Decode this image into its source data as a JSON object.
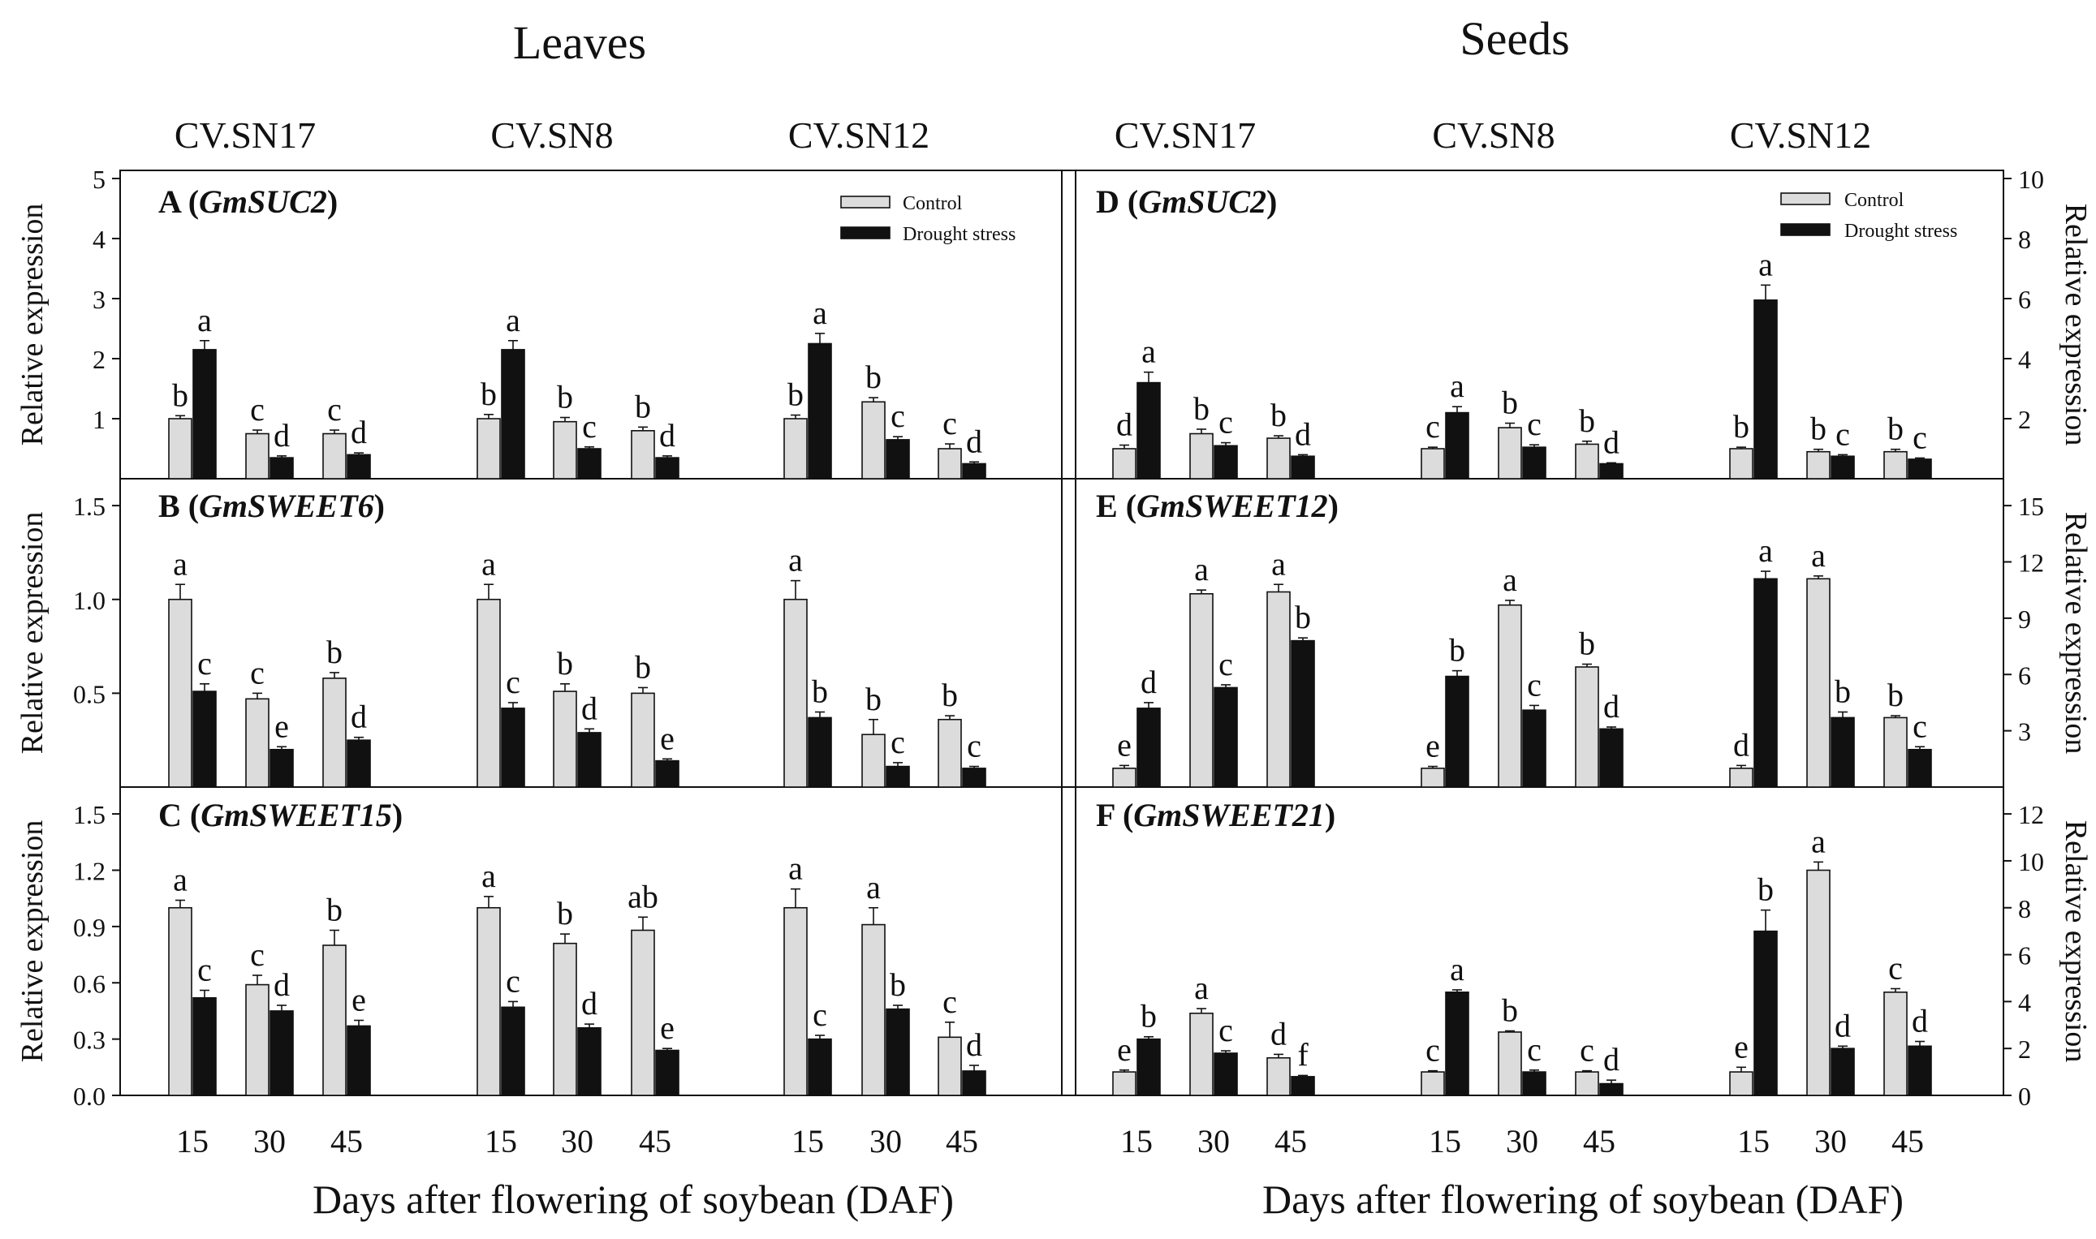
{
  "headers": {
    "leaves": "Leaves",
    "seeds": "Seeds",
    "cultivars": [
      "CV.SN17",
      "CV.SN8",
      "CV.SN12"
    ]
  },
  "xlabel": "Days after flowering of soybean (DAF)",
  "days": [
    "15",
    "30",
    "45"
  ],
  "legend": {
    "control": "Control",
    "drought": "Drought stress"
  },
  "colors": {
    "control": "#dcdcdc",
    "drought": "#111111"
  },
  "chart_data": [
    {
      "type": "bar",
      "panel": "A",
      "gene": "GmSUC2",
      "tissue": "Leaves",
      "ylabel": "Relative expression",
      "ylim": [
        0,
        5
      ],
      "yticks": [
        1,
        2,
        3,
        4,
        5
      ],
      "categories": [
        "CV.SN17 15",
        "CV.SN17 30",
        "CV.SN17 45",
        "CV.SN8 15",
        "CV.SN8 30",
        "CV.SN8 45",
        "CV.SN12 15",
        "CV.SN12 30",
        "CV.SN12 45"
      ],
      "series": [
        {
          "name": "Control",
          "values": [
            1.0,
            0.75,
            0.75,
            1.0,
            0.95,
            0.8,
            1.0,
            1.28,
            0.5
          ],
          "errors": [
            0.05,
            0.06,
            0.06,
            0.07,
            0.07,
            0.06,
            0.06,
            0.07,
            0.08
          ],
          "labels": [
            "b",
            "c",
            "c",
            "b",
            "b",
            "b",
            "b",
            "b",
            "c"
          ]
        },
        {
          "name": "Drought stress",
          "values": [
            2.15,
            0.35,
            0.4,
            2.15,
            0.5,
            0.35,
            2.25,
            0.65,
            0.25
          ],
          "errors": [
            0.15,
            0.03,
            0.03,
            0.15,
            0.03,
            0.03,
            0.17,
            0.05,
            0.03
          ],
          "labels": [
            "a",
            "d",
            "d",
            "a",
            "c",
            "d",
            "a",
            "c",
            "d"
          ]
        }
      ]
    },
    {
      "type": "bar",
      "panel": "B",
      "gene": "GmSWEET6",
      "tissue": "Leaves",
      "ylabel": "Relative expression",
      "ylim": [
        0,
        1.6
      ],
      "yticks": [
        "0.5",
        "1.0",
        "1.5"
      ],
      "categories": [
        "CV.SN17 15",
        "CV.SN17 30",
        "CV.SN17 45",
        "CV.SN8 15",
        "CV.SN8 30",
        "CV.SN8 45",
        "CV.SN12 15",
        "CV.SN12 30",
        "CV.SN12 45"
      ],
      "series": [
        {
          "name": "Control",
          "values": [
            1.0,
            0.47,
            0.58,
            1.0,
            0.51,
            0.5,
            1.0,
            0.28,
            0.36
          ],
          "errors": [
            0.08,
            0.03,
            0.03,
            0.08,
            0.04,
            0.03,
            0.1,
            0.08,
            0.02
          ],
          "labels": [
            "a",
            "c",
            "b",
            "a",
            "b",
            "b",
            "a",
            "b",
            "b"
          ]
        },
        {
          "name": "Drought stress",
          "values": [
            0.51,
            0.2,
            0.25,
            0.42,
            0.29,
            0.14,
            0.37,
            0.11,
            0.1
          ],
          "errors": [
            0.04,
            0.015,
            0.015,
            0.03,
            0.02,
            0.01,
            0.03,
            0.02,
            0.01
          ],
          "labels": [
            "c",
            "e",
            "d",
            "c",
            "d",
            "e",
            "b",
            "c",
            "c"
          ]
        }
      ]
    },
    {
      "type": "bar",
      "panel": "C",
      "gene": "GmSWEET15",
      "tissue": "Leaves",
      "xlabel": "Days after flowering of soybean (DAF)",
      "ylabel": "Relative expression",
      "ylim": [
        0,
        1.6
      ],
      "yticks": [
        "0.0",
        "0.3",
        "0.6",
        "0.9",
        "1.2",
        "1.5"
      ],
      "categories": [
        "CV.SN17 15",
        "CV.SN17 30",
        "CV.SN17 45",
        "CV.SN8 15",
        "CV.SN8 30",
        "CV.SN8 45",
        "CV.SN12 15",
        "CV.SN12 30",
        "CV.SN12 45"
      ],
      "series": [
        {
          "name": "Control",
          "values": [
            1.0,
            0.59,
            0.8,
            1.0,
            0.81,
            0.88,
            1.0,
            0.91,
            0.31
          ],
          "errors": [
            0.04,
            0.05,
            0.08,
            0.06,
            0.05,
            0.07,
            0.1,
            0.09,
            0.08
          ],
          "labels": [
            "a",
            "c",
            "b",
            "a",
            "b",
            "ab",
            "a",
            "a",
            "c"
          ]
        },
        {
          "name": "Drought stress",
          "values": [
            0.52,
            0.45,
            0.37,
            0.47,
            0.36,
            0.24,
            0.3,
            0.46,
            0.13
          ],
          "errors": [
            0.04,
            0.03,
            0.03,
            0.03,
            0.02,
            0.01,
            0.02,
            0.02,
            0.03
          ],
          "labels": [
            "c",
            "d",
            "e",
            "c",
            "d",
            "e",
            "c",
            "b",
            "d"
          ]
        }
      ]
    },
    {
      "type": "bar",
      "panel": "D",
      "gene": "GmSUC2",
      "tissue": "Seeds",
      "ylabel": "Relative expression",
      "ylim": [
        0,
        10
      ],
      "yticks": [
        "2",
        "4",
        "6",
        "8",
        "10"
      ],
      "categories": [
        "CV.SN17 15",
        "CV.SN17 30",
        "CV.SN17 45",
        "CV.SN8 15",
        "CV.SN8 30",
        "CV.SN8 45",
        "CV.SN12 15",
        "CV.SN12 30",
        "CV.SN12 45"
      ],
      "series": [
        {
          "name": "Control",
          "values": [
            1.0,
            1.5,
            1.35,
            1.0,
            1.7,
            1.15,
            1.0,
            0.9,
            0.9
          ],
          "errors": [
            0.12,
            0.15,
            0.08,
            0.05,
            0.15,
            0.1,
            0.05,
            0.08,
            0.08
          ],
          "labels": [
            "d",
            "b",
            "b",
            "c",
            "b",
            "b",
            "b",
            "b",
            "b"
          ]
        },
        {
          "name": "Drought stress",
          "values": [
            3.2,
            1.1,
            0.75,
            2.2,
            1.05,
            0.5,
            5.95,
            0.75,
            0.65
          ],
          "errors": [
            0.35,
            0.1,
            0.05,
            0.2,
            0.08,
            0.03,
            0.5,
            0.05,
            0.04
          ],
          "labels": [
            "a",
            "c",
            "d",
            "a",
            "c",
            "d",
            "a",
            "c",
            "c"
          ]
        }
      ]
    },
    {
      "type": "bar",
      "panel": "E",
      "gene": "GmSWEET12",
      "tissue": "Seeds",
      "ylabel": "Relative expression",
      "ylim": [
        0,
        16
      ],
      "yticks": [
        "3",
        "6",
        "9",
        "12",
        "15"
      ],
      "categories": [
        "CV.SN17 15",
        "CV.SN17 30",
        "CV.SN17 45",
        "CV.SN8 15",
        "CV.SN8 30",
        "CV.SN8 45",
        "CV.SN12 15",
        "CV.SN12 30",
        "CV.SN12 45"
      ],
      "series": [
        {
          "name": "Control",
          "values": [
            1.0,
            10.3,
            10.4,
            1.0,
            9.7,
            6.4,
            1.0,
            11.1,
            3.7
          ],
          "errors": [
            0.15,
            0.2,
            0.4,
            0.1,
            0.25,
            0.15,
            0.15,
            0.15,
            0.1
          ],
          "labels": [
            "e",
            "a",
            "a",
            "e",
            "a",
            "b",
            "d",
            "a",
            "b"
          ]
        },
        {
          "name": "Drought stress",
          "values": [
            4.2,
            5.3,
            7.8,
            5.9,
            4.1,
            3.1,
            11.1,
            3.7,
            2.0
          ],
          "errors": [
            0.3,
            0.15,
            0.15,
            0.3,
            0.25,
            0.1,
            0.4,
            0.3,
            0.15
          ],
          "labels": [
            "d",
            "c",
            "b",
            "b",
            "c",
            "d",
            "a",
            "b",
            "c"
          ]
        }
      ]
    },
    {
      "type": "bar",
      "panel": "F",
      "gene": "GmSWEET21",
      "tissue": "Seeds",
      "xlabel": "Days after flowering of soybean (DAF)",
      "ylabel": "Relative expression",
      "ylim": [
        0,
        12.8
      ],
      "yticks": [
        "0",
        "2",
        "4",
        "6",
        "8",
        "10",
        "12"
      ],
      "categories": [
        "CV.SN17 15",
        "CV.SN17 30",
        "CV.SN17 45",
        "CV.SN8 15",
        "CV.SN8 30",
        "CV.SN8 45",
        "CV.SN12 15",
        "CV.SN12 30",
        "CV.SN12 45"
      ],
      "series": [
        {
          "name": "Control",
          "values": [
            1.0,
            3.5,
            1.6,
            1.0,
            2.7,
            1.0,
            1.0,
            9.6,
            4.4
          ],
          "errors": [
            0.08,
            0.2,
            0.15,
            0.05,
            0.05,
            0.05,
            0.2,
            0.35,
            0.15
          ],
          "labels": [
            "e",
            "a",
            "d",
            "c",
            "b",
            "c",
            "e",
            "a",
            "c"
          ]
        },
        {
          "name": "Drought stress",
          "values": [
            2.4,
            1.8,
            0.8,
            4.4,
            1.0,
            0.5,
            7.0,
            2.0,
            2.1
          ],
          "errors": [
            0.1,
            0.1,
            0.05,
            0.1,
            0.08,
            0.15,
            0.9,
            0.1,
            0.2
          ],
          "labels": [
            "b",
            "c",
            "f",
            "a",
            "c",
            "d",
            "b",
            "d",
            "d"
          ]
        }
      ]
    }
  ]
}
